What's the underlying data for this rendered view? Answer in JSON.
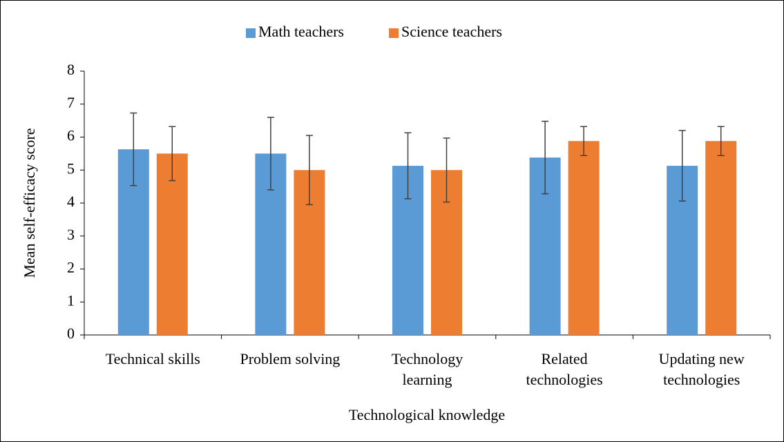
{
  "chart_data": {
    "type": "bar",
    "x_label": "Technological knowledge",
    "y_label": "Mean self-efficacy score",
    "categories": [
      "Technical skills",
      "Problem solving",
      "Technology learning",
      "Related technologies",
      "Updating new technologies"
    ],
    "series": [
      {
        "name": "Math teachers",
        "color": "#5b9bd5",
        "values": [
          5.63,
          5.5,
          5.13,
          5.38,
          5.13
        ],
        "errors": [
          1.1,
          1.1,
          1.0,
          1.1,
          1.07
        ]
      },
      {
        "name": "Science teachers",
        "color": "#ed7d31",
        "values": [
          5.5,
          5.0,
          5.0,
          5.88,
          5.88
        ],
        "errors": [
          0.82,
          1.05,
          0.97,
          0.44,
          0.44
        ]
      }
    ],
    "ylim": [
      0,
      8
    ],
    "yticks": [
      0,
      1,
      2,
      3,
      4,
      5,
      6,
      7,
      8
    ],
    "legend": "top"
  }
}
